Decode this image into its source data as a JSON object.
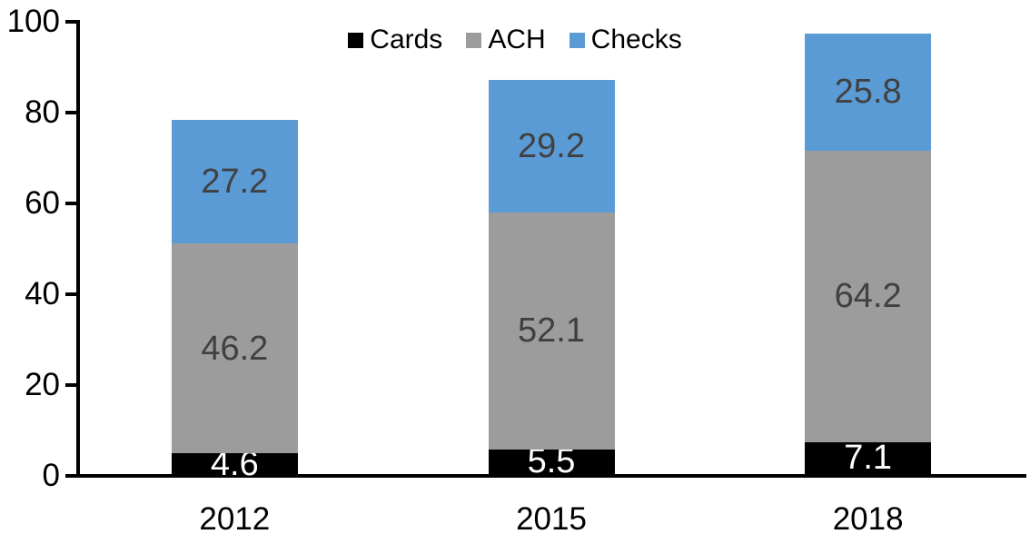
{
  "chart_data": {
    "type": "bar",
    "subtype": "stacked-column",
    "title": "",
    "xlabel": "",
    "ylabel": "",
    "categories": [
      "2012",
      "2015",
      "2018"
    ],
    "series": [
      {
        "name": "Cards",
        "color": "#000000",
        "label_color": "#ffffff",
        "values": [
          4.6,
          5.5,
          7.1
        ]
      },
      {
        "name": "ACH",
        "color": "#9C9C9C",
        "label_color": "#404040",
        "values": [
          46.2,
          52.1,
          64.2
        ]
      },
      {
        "name": "Checks",
        "color": "#5B9BD5",
        "label_color": "#404040",
        "values": [
          27.2,
          29.2,
          25.8
        ]
      }
    ],
    "stack_totals": [
      78.0,
      86.8,
      97.1
    ],
    "ylim": [
      0,
      100
    ],
    "yticks": [
      0,
      20,
      40,
      60,
      80,
      100
    ],
    "grid": false,
    "legend_position": "top",
    "data_labels_shown": true,
    "axis_color": "#000000",
    "background_color": "#ffffff"
  }
}
